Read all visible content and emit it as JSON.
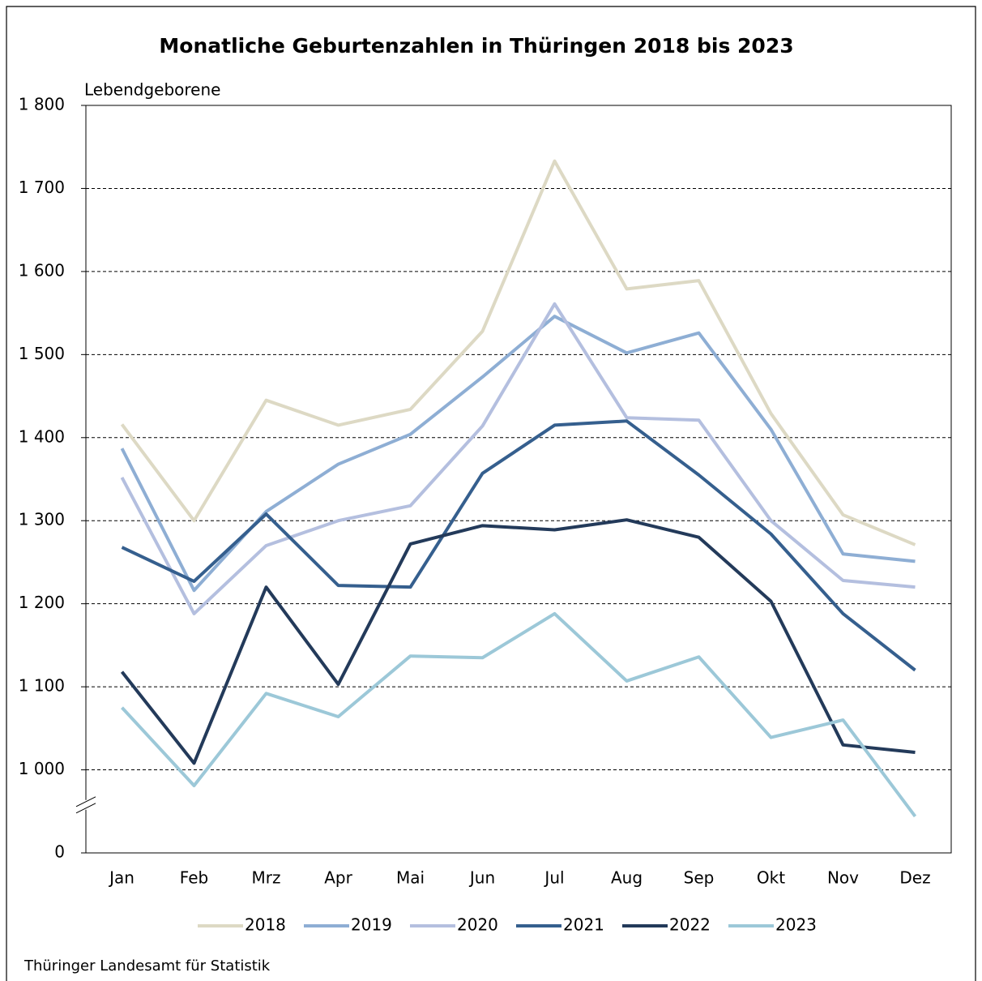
{
  "chart_data": {
    "type": "line",
    "title": "Monatliche Geburtenzahlen in Thüringen 2018 bis 2023",
    "y_label": "Lebendgeborene",
    "source": "Thüringer Landesamt für Statistik",
    "categories": [
      "Jan",
      "Feb",
      "Mrz",
      "Apr",
      "Mai",
      "Jun",
      "Jul",
      "Aug",
      "Sep",
      "Okt",
      "Nov",
      "Dez"
    ],
    "series": [
      {
        "name": "2018",
        "color": "#ddd9c4",
        "values": [
          1416,
          1300,
          1445,
          1415,
          1434,
          1528,
          1733,
          1579,
          1589,
          1429,
          1307,
          1271
        ]
      },
      {
        "name": "2019",
        "color": "#8eaed4",
        "values": [
          1387,
          1216,
          1311,
          1368,
          1404,
          1473,
          1546,
          1502,
          1526,
          1410,
          1260,
          1251
        ]
      },
      {
        "name": "2020",
        "color": "#b4bfdf",
        "values": [
          1352,
          1188,
          1270,
          1300,
          1318,
          1414,
          1561,
          1424,
          1421,
          1300,
          1228,
          1220
        ]
      },
      {
        "name": "2021",
        "color": "#355f8e",
        "values": [
          1268,
          1227,
          1308,
          1222,
          1220,
          1357,
          1415,
          1420,
          1355,
          1284,
          1188,
          1120
        ]
      },
      {
        "name": "2022",
        "color": "#233a5a",
        "values": [
          1118,
          1008,
          1220,
          1103,
          1272,
          1294,
          1289,
          1301,
          1280,
          1203,
          1030,
          1021
        ]
      },
      {
        "name": "2023",
        "color": "#9cc8d8",
        "values": [
          1075,
          981,
          1092,
          1064,
          1137,
          1135,
          1188,
          1107,
          1136,
          1039,
          1060,
          944
        ]
      }
    ],
    "ylim": [
      0,
      1800
    ],
    "axis_break": [
      0,
      900
    ],
    "yticks": [
      0,
      {
        "value": 1000,
        "label": "1 000"
      },
      {
        "value": 1100,
        "label": "1 100"
      },
      {
        "value": 1200,
        "label": "1 200"
      },
      {
        "value": 1300,
        "label": "1 300"
      },
      {
        "value": 1400,
        "label": "1 400"
      },
      {
        "value": 1500,
        "label": "1 500"
      },
      {
        "value": 1600,
        "label": "1 600"
      },
      {
        "value": 1700,
        "label": "1 700"
      },
      {
        "value": 1800,
        "label": "1 800"
      }
    ],
    "grid": true,
    "legend": "bottom"
  }
}
